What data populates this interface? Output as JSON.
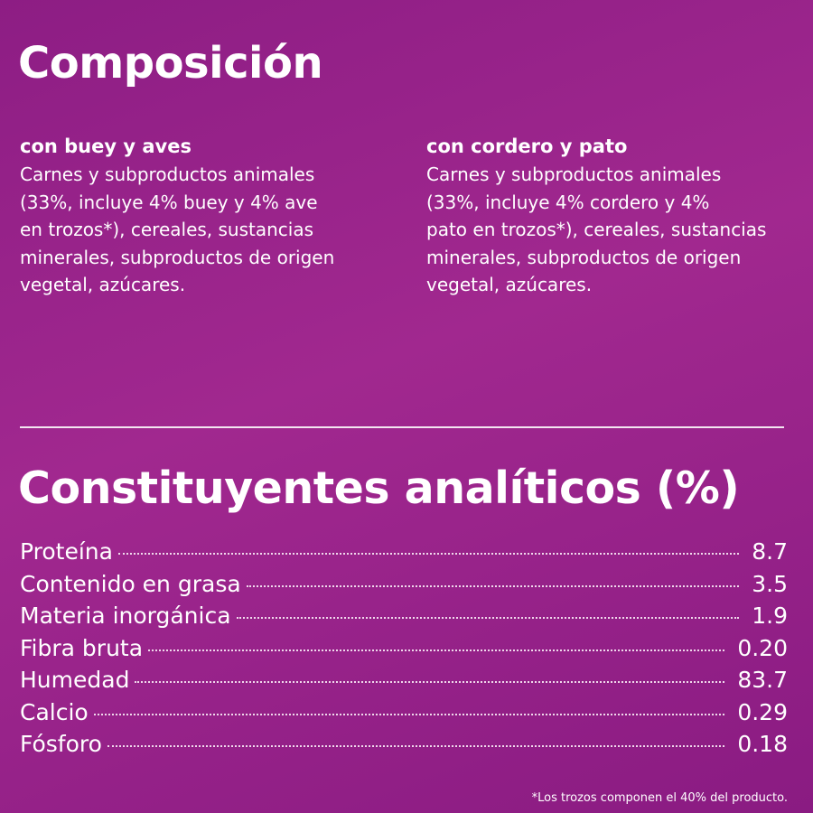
{
  "composition": {
    "title": "Composición",
    "columns": [
      {
        "heading": "con buey y aves",
        "lines": [
          "Carnes y subproductos animales",
          "(33%, incluye 4% buey y 4% ave",
          "en trozos*), cereales, sustancias",
          "minerales, subproductos de origen",
          "vegetal, azúcares."
        ]
      },
      {
        "heading": "con cordero y pato",
        "lines": [
          "Carnes y subproductos animales",
          "(33%, incluye 4% cordero y 4%",
          "pato en trozos*), cereales, sustancias",
          "minerales, subproductos de origen",
          "vegetal, azúcares."
        ]
      }
    ]
  },
  "analysis": {
    "title": "Constituyentes analíticos (%)",
    "rows": [
      [
        "Proteína",
        "8.7"
      ],
      [
        "Contenido en grasa",
        "3.5"
      ],
      [
        "Materia inorgánica",
        "1.9"
      ],
      [
        "Fibra bruta",
        "0.20"
      ],
      [
        "Humedad",
        "83.7"
      ],
      [
        "Calcio",
        "0.29"
      ],
      [
        "Fósforo",
        "0.18"
      ]
    ]
  },
  "footnote": "*Los trozos componen el 40% del producto."
}
